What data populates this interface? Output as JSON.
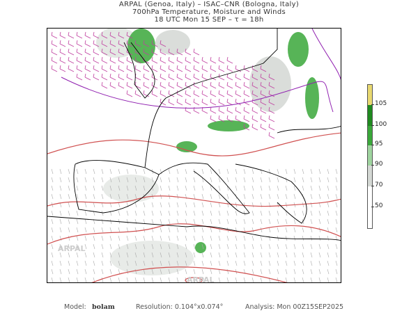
{
  "header": {
    "line1": "ARPAL (Genoa, Italy)  –  ISAC–CNR (Bologna, Italy)",
    "line2": "700hPa Temperature, Moisture and Winds",
    "line3": "18 UTC Mon 15 SEP  –  τ = 18h"
  },
  "colorbar": {
    "labels": [
      "105",
      "100",
      "95",
      "90",
      "70",
      "50"
    ],
    "colors": [
      "#e8d870",
      "#1f8a1f",
      "#3aa83a",
      "#9fd49f",
      "#d4d8d4",
      "#ffffff"
    ]
  },
  "map": {
    "watermark": "ARPAL",
    "colors": {
      "temperature_contour": "#d05050",
      "wind_barbs_strong": "#c040a0",
      "wind_barbs": "#999999",
      "coastline": "#000000",
      "moisture": "#2e9e2e",
      "jet_contour": "#9020b0"
    }
  },
  "footer": {
    "model_label": "Model:",
    "model_value": "bolam",
    "resolution": "Resolution: 0.104°x0.074°",
    "analysis": "Analysis: Mon  00Z15SEP2025"
  }
}
